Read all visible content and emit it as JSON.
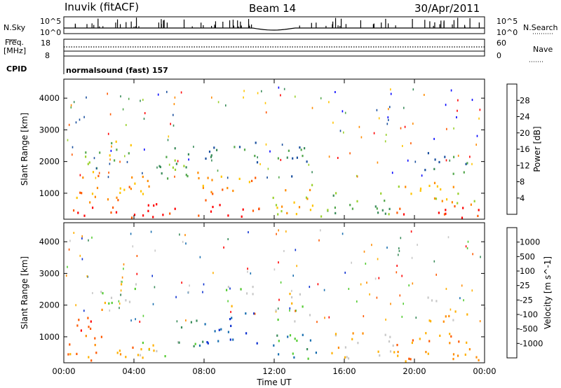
{
  "header": {
    "station": "Inuvik (fitACF)",
    "beam": "Beam 14",
    "date": "30/Apr/2011"
  },
  "noise_panel": {
    "left_label": "N.Sky",
    "right_label": "N.Search",
    "left_ticks": [
      "10^5",
      "10^0"
    ],
    "right_ticks": [
      "10^5",
      "10^0"
    ]
  },
  "freq_panel": {
    "left_label_top": "Freq.",
    "left_label_bottom": "[MHz]",
    "right_label": "Nave",
    "left_ticks": [
      "18",
      "8"
    ],
    "right_ticks": [
      "60",
      "0"
    ]
  },
  "cpid": {
    "label": "CPID",
    "value": "normalsound (fast) 157"
  },
  "colors": {
    "power_scale": [
      "#0000ff",
      "#1a4f9e",
      "#3a8c5a",
      "#55a84e",
      "#9bd12e",
      "#ffc400",
      "#ff8c00",
      "#ff5a00",
      "#ff0000"
    ],
    "velocity_scale": [
      "#ff0000",
      "#ff5a00",
      "#ff8c00",
      "#ffb000",
      "#c8c8c8",
      "#55cc33",
      "#3a8c5a",
      "#1a6fb0",
      "#0a2fd0"
    ]
  },
  "chart_data": [
    {
      "type": "heatmap",
      "name": "power",
      "xlabel": "",
      "ylabel": "Slant Range [km]",
      "x_ticks": [
        "00:00",
        "04:00",
        "08:00",
        "12:00",
        "16:00",
        "20:00",
        "00:00"
      ],
      "y_ticks": [
        "1000",
        "2000",
        "3000",
        "4000"
      ],
      "ylim": [
        180,
        4600
      ],
      "colorbar_label": "Power [dB]",
      "colorbar_ticks": [
        "4",
        "8",
        "12",
        "16",
        "20",
        "24",
        "28"
      ],
      "regions": [
        {
          "t0": 0.2,
          "t1": 11.2,
          "r0": 250,
          "r1": 700,
          "level": 8
        },
        {
          "t0": 0.3,
          "t1": 5.0,
          "r0": 700,
          "r1": 1600,
          "level": 6
        },
        {
          "t0": 1.2,
          "t1": 3.8,
          "r0": 1700,
          "r1": 2700,
          "level": 4
        },
        {
          "t0": 5.2,
          "t1": 7.6,
          "r0": 1500,
          "r1": 2600,
          "level": 3
        },
        {
          "t0": 7.6,
          "t1": 11.0,
          "r0": 800,
          "r1": 1700,
          "level": 6
        },
        {
          "t0": 8.0,
          "t1": 11.0,
          "r0": 2000,
          "r1": 2700,
          "level": 2
        },
        {
          "t0": 11.6,
          "t1": 14.8,
          "r0": 300,
          "r1": 1300,
          "level": 5
        },
        {
          "t0": 12.0,
          "t1": 14.0,
          "r0": 1500,
          "r1": 2500,
          "level": 2
        },
        {
          "t0": 15.0,
          "t1": 18.6,
          "r0": 300,
          "r1": 1200,
          "level": 3
        },
        {
          "t0": 18.6,
          "t1": 24.0,
          "r0": 250,
          "r1": 650,
          "level": 8
        },
        {
          "t0": 19.0,
          "t1": 23.5,
          "r0": 650,
          "r1": 1400,
          "level": 5
        },
        {
          "t0": 20.5,
          "t1": 23.0,
          "r0": 1600,
          "r1": 2400,
          "level": 2
        }
      ]
    },
    {
      "type": "heatmap",
      "name": "velocity",
      "xlabel": "Time UT",
      "ylabel": "Slant Range [km]",
      "x_ticks": [
        "00:00",
        "04:00",
        "08:00",
        "12:00",
        "16:00",
        "20:00",
        "00:00"
      ],
      "y_ticks": [
        "1000",
        "2000",
        "3000",
        "4000"
      ],
      "ylim": [
        180,
        4600
      ],
      "colorbar_label": "Velocity [m s^-1]",
      "colorbar_ticks": [
        "-1000",
        "-500",
        "-100",
        "-25",
        "25",
        "100",
        "500",
        "1000"
      ],
      "regions": [
        {
          "t0": 0.2,
          "t1": 4.5,
          "r0": 250,
          "r1": 800,
          "level": 2
        },
        {
          "t0": 0.5,
          "t1": 2.5,
          "r0": 900,
          "r1": 1900,
          "level": 1
        },
        {
          "t0": 3.0,
          "t1": 6.5,
          "r0": 300,
          "r1": 900,
          "level": 4
        },
        {
          "t0": 1.8,
          "t1": 5.0,
          "r0": 2000,
          "r1": 2700,
          "level": 4
        },
        {
          "t0": 6.5,
          "t1": 8.0,
          "r0": 700,
          "r1": 1700,
          "level": 6
        },
        {
          "t0": 8.0,
          "t1": 11.0,
          "r0": 800,
          "r1": 1800,
          "level": 8
        },
        {
          "t0": 9.0,
          "t1": 11.0,
          "r0": 2000,
          "r1": 2700,
          "level": 4
        },
        {
          "t0": 11.8,
          "t1": 14.5,
          "r0": 300,
          "r1": 1300,
          "level": 6
        },
        {
          "t0": 12.0,
          "t1": 14.0,
          "r0": 1500,
          "r1": 2500,
          "level": 4
        },
        {
          "t0": 15.0,
          "t1": 18.8,
          "r0": 300,
          "r1": 1200,
          "level": 3
        },
        {
          "t0": 18.8,
          "t1": 24.0,
          "r0": 250,
          "r1": 1200,
          "level": 2
        },
        {
          "t0": 20.5,
          "t1": 23.0,
          "r0": 1500,
          "r1": 2300,
          "level": 3
        }
      ]
    }
  ]
}
